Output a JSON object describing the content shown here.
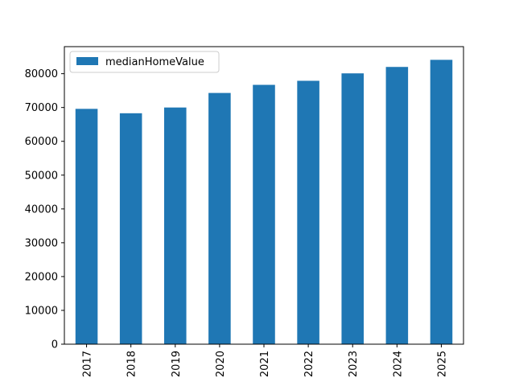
{
  "chart_data": {
    "type": "bar",
    "title": "",
    "xlabel": "",
    "ylabel": "",
    "categories": [
      "2017",
      "2018",
      "2019",
      "2020",
      "2021",
      "2022",
      "2023",
      "2024",
      "2025"
    ],
    "series": [
      {
        "name": "medianHomeValue",
        "values": [
          69600,
          68300,
          70000,
          74300,
          76700,
          77900,
          80100,
          82000,
          84100
        ],
        "color": "#1f77b4"
      }
    ],
    "ylim": [
      0,
      88000
    ],
    "yticks": [
      0,
      10000,
      20000,
      30000,
      40000,
      50000,
      60000,
      70000,
      80000
    ],
    "grid": false,
    "legend_position": "top-left"
  }
}
